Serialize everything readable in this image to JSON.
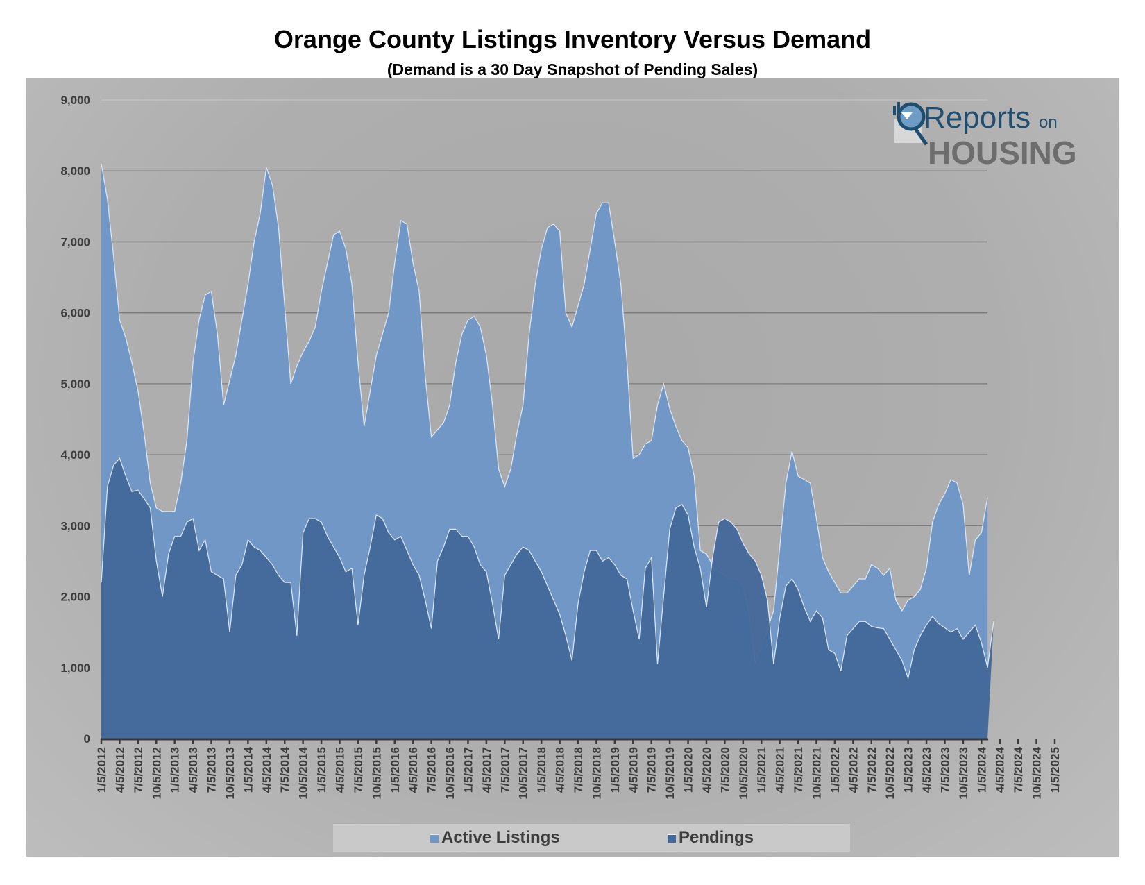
{
  "chart_data": {
    "type": "area",
    "title": "Orange County Listings Inventory Versus Demand",
    "subtitle": "(Demand is a 30 Day Snapshot of Pending Sales)",
    "xlabel": "",
    "ylabel": "",
    "ylim": [
      0,
      9000
    ],
    "y_ticks": [
      "0",
      "1,000",
      "2,000",
      "3,000",
      "4,000",
      "5,000",
      "6,000",
      "7,000",
      "8,000",
      "9,000"
    ],
    "y_tick_values": [
      0,
      1000,
      2000,
      3000,
      4000,
      5000,
      6000,
      7000,
      8000,
      9000
    ],
    "grid": true,
    "legend": "bottom",
    "x_start": "1/5/2012",
    "x_interval": "monthly",
    "x_tick_labels": [
      "1/5/2012",
      "4/5/2012",
      "7/5/2012",
      "10/5/2012",
      "1/5/2013",
      "4/5/2013",
      "7/5/2013",
      "10/5/2013",
      "1/5/2014",
      "4/5/2014",
      "7/5/2014",
      "10/5/2014",
      "1/5/2015",
      "4/5/2015",
      "7/5/2015",
      "10/5/2015",
      "1/5/2016",
      "4/5/2016",
      "7/5/2016",
      "10/5/2016",
      "1/5/2017",
      "4/5/2017",
      "7/5/2017",
      "10/5/2017",
      "1/5/2018",
      "4/5/2018",
      "7/5/2018",
      "10/5/2018",
      "1/5/2019",
      "4/5/2019",
      "7/5/2019",
      "10/5/2019",
      "1/5/2020",
      "4/5/2020",
      "7/5/2020",
      "10/5/2020",
      "1/5/2021",
      "4/5/2021",
      "7/5/2021",
      "10/5/2021",
      "1/5/2022",
      "4/5/2022",
      "7/5/2022",
      "10/5/2022",
      "1/5/2023",
      "4/5/2023",
      "7/5/2023",
      "10/5/2023",
      "1/5/2024",
      "4/5/2024",
      "7/5/2024",
      "10/5/2024",
      "1/5/2025"
    ],
    "series": [
      {
        "name": "Active Listings",
        "color": "#7097c6",
        "values": [
          8100,
          7600,
          6800,
          5900,
          5650,
          5300,
          4900,
          4300,
          3600,
          3250,
          3200,
          3200,
          3200,
          3600,
          4200,
          5300,
          5900,
          6250,
          6300,
          5700,
          4700,
          5050,
          5400,
          5900,
          6400,
          7000,
          7400,
          8050,
          7800,
          7200,
          6100,
          5000,
          5250,
          5450,
          5600,
          5800,
          6300,
          6700,
          7100,
          7150,
          6900,
          6400,
          5300,
          4400,
          4900,
          5400,
          5700,
          6000,
          6700,
          7300,
          7250,
          6700,
          6300,
          5100,
          4250,
          4350,
          4450,
          4700,
          5300,
          5700,
          5900,
          5950,
          5800,
          5400,
          4700,
          3800,
          3550,
          3800,
          4300,
          4700,
          5700,
          6400,
          6900,
          7200,
          7250,
          7150,
          6000,
          5800,
          6100,
          6400,
          6900,
          7400,
          7550,
          7550,
          7000,
          6400,
          5300,
          3950,
          4000,
          4150,
          4200,
          4700,
          5000,
          4650,
          4400,
          4200,
          4100,
          3700,
          2650,
          2600,
          2450,
          2350,
          2300,
          2250,
          2250,
          2150,
          1750,
          1050,
          1300,
          1550,
          1800,
          2700,
          3600,
          4050,
          3700,
          3650,
          3600,
          3100,
          2550,
          2350,
          2200,
          2050,
          2050,
          2150,
          2250,
          2250,
          2450,
          2400,
          2300,
          2400,
          1950,
          1800,
          1950,
          2000,
          2100,
          2400,
          3050,
          3300,
          3450,
          3650,
          3600,
          3300,
          2300,
          2800,
          2900,
          3400
        ]
      },
      {
        "name": "Pendings",
        "color": "#44689a",
        "values": [
          2200,
          3550,
          3850,
          3950,
          3700,
          3480,
          3500,
          3380,
          3250,
          2500,
          2000,
          2600,
          2850,
          2850,
          3050,
          3100,
          2650,
          2800,
          2350,
          2300,
          2250,
          1500,
          2300,
          2450,
          2800,
          2700,
          2650,
          2550,
          2450,
          2300,
          2200,
          2200,
          1450,
          2900,
          3100,
          3100,
          3050,
          2850,
          2700,
          2550,
          2350,
          2400,
          1600,
          2300,
          2700,
          3150,
          3100,
          2900,
          2800,
          2850,
          2650,
          2450,
          2300,
          1950,
          1550,
          2500,
          2700,
          2950,
          2950,
          2850,
          2850,
          2700,
          2450,
          2350,
          1900,
          1400,
          2300,
          2450,
          2600,
          2700,
          2650,
          2500,
          2350,
          2150,
          1950,
          1750,
          1450,
          1100,
          1900,
          2350,
          2650,
          2650,
          2500,
          2550,
          2450,
          2300,
          2250,
          1800,
          1400,
          2400,
          2550,
          1050,
          2000,
          2950,
          3250,
          3300,
          3150,
          2700,
          2400,
          1850,
          2550,
          3050,
          3100,
          3050,
          2950,
          2750,
          2600,
          2500,
          2300,
          1950,
          1050,
          1700,
          2150,
          2250,
          2100,
          1850,
          1650,
          1800,
          1700,
          1250,
          1200,
          950,
          1450,
          1550,
          1650,
          1650,
          1580,
          1560,
          1550,
          1400,
          1250,
          1100,
          850,
          1250,
          1450,
          1600,
          1720,
          1620,
          1560,
          1500,
          1550,
          1400,
          1500,
          1600,
          1350,
          1000,
          1650
        ]
      }
    ]
  },
  "legend": {
    "items": [
      {
        "label": "Active Listings",
        "color": "#7097c6"
      },
      {
        "label": "Pendings",
        "color": "#44689a"
      }
    ]
  },
  "logo": {
    "line1": "Reports",
    "line1_small": "on",
    "line2": "HOUSING",
    "colors": {
      "dark": "#1f4e6e",
      "gray": "#6d6d6d"
    }
  }
}
